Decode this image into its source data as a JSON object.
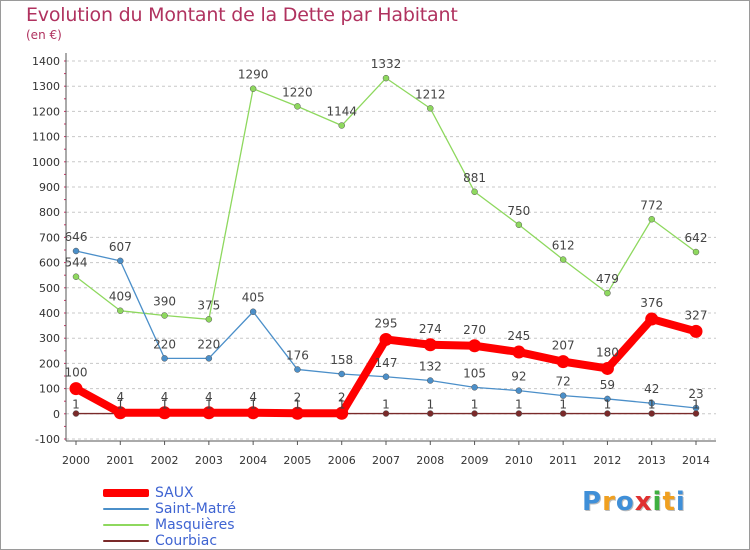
{
  "title": "Evolution du Montant de la Dette par Habitant",
  "subtitle": "(en €)",
  "logo": {
    "letters": [
      "P",
      "r",
      "o",
      "x",
      "i",
      "t",
      "i"
    ],
    "colors": [
      "#3f8fd8",
      "#f0a020",
      "#3f8fd8",
      "#e03030",
      "#3fb040",
      "#f0a020",
      "#3f8fd8"
    ]
  },
  "chart_data": {
    "type": "line",
    "title": "Evolution du Montant de la Dette par Habitant",
    "subtitle": "(en €)",
    "x": [
      "2000",
      "2001",
      "2002",
      "2003",
      "2004",
      "2005",
      "2006",
      "2007",
      "2008",
      "2009",
      "2010",
      "2011",
      "2012",
      "2013",
      "2014"
    ],
    "ylim": [
      -100,
      1400
    ],
    "yticks": [
      -100,
      0,
      100,
      200,
      300,
      400,
      500,
      600,
      700,
      800,
      900,
      1000,
      1100,
      1200,
      1300,
      1400
    ],
    "grid": "horizontal dashed",
    "legend": "bottom-left",
    "series": [
      {
        "name": "SAUX",
        "color": "#ff0000",
        "values": [
          100,
          4,
          4,
          4,
          4,
          2,
          2,
          295,
          274,
          270,
          245,
          207,
          180,
          376,
          327
        ]
      },
      {
        "name": "Saint-Matré",
        "color": "#4b8fc9",
        "values": [
          646,
          607,
          220,
          220,
          405,
          176,
          158,
          147,
          132,
          105,
          92,
          72,
          59,
          42,
          23
        ]
      },
      {
        "name": "Masquières",
        "color": "#8ed85e",
        "values": [
          544,
          409,
          390,
          375,
          1290,
          1220,
          1144,
          1332,
          1212,
          881,
          750,
          612,
          479,
          772,
          642
        ]
      },
      {
        "name": "Courbiac",
        "color": "#7a2a2a",
        "values": [
          1,
          1,
          1,
          1,
          1,
          1,
          1,
          1,
          1,
          1,
          1,
          1,
          1,
          1,
          1
        ]
      }
    ]
  }
}
